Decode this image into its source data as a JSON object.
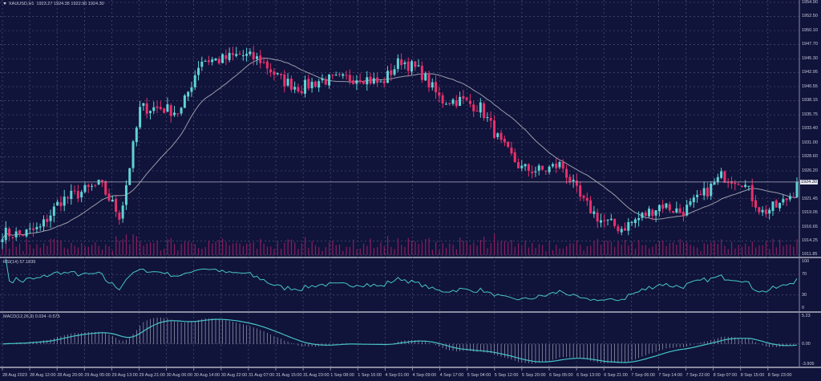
{
  "header": {
    "symbol": "XAUUSD,H1",
    "open": "1923.27",
    "high": "1924.35",
    "low": "1922.90",
    "close": "1924.30"
  },
  "rsi": {
    "label": "RSI(14) 57.1839",
    "levels": [
      "100",
      "70",
      "30",
      "0"
    ]
  },
  "macd": {
    "label": "MACD(12,26,9) 0.034 -0.575",
    "levels": [
      "5.23",
      "0.00",
      "-3.905"
    ]
  },
  "price_axis": [
    "1954.90",
    "1952.50",
    "1950.10",
    "1947.70",
    "1945.30",
    "1942.95",
    "1940.55",
    "1938.15",
    "1935.75",
    "1933.40",
    "1931.00",
    "1928.60",
    "1926.20",
    "1921.45",
    "1919.05",
    "1916.65",
    "1914.25",
    "1911.85"
  ],
  "current_price": "1924.30",
  "time_axis": [
    "28 Aug 2023",
    "28 Aug 12:00",
    "28 Aug 20:00",
    "29 Aug 05:00",
    "29 Aug 13:00",
    "29 Aug 21:00",
    "30 Aug 06:00",
    "30 Aug 14:00",
    "30 Aug 22:00",
    "31 Aug 07:00",
    "31 Aug 15:00",
    "31 Aug 23:00",
    "1 Sep 08:00",
    "1 Sep 16:00",
    "4 Sep 01:00",
    "4 Sep 09:00",
    "4 Sep 17:00",
    "5 Sep 04:00",
    "5 Sep 12:00",
    "5 Sep 20:00",
    "6 Sep 05:00",
    "6 Sep 13:00",
    "6 Sep 21:00",
    "7 Sep 06:00",
    "7 Sep 14:00",
    "7 Sep 22:00",
    "8 Sep 07:00",
    "8 Sep 15:00",
    "8 Sep 23:00"
  ],
  "colors": {
    "background": "#10133a",
    "grid": "#5a5e80",
    "bull": "#5fd3d6",
    "bear": "#e8306c",
    "volume": "#8c1e5e",
    "ma": "#9a9ca8",
    "indicator": "#46c4c8"
  },
  "chart_data": {
    "type": "candlestick",
    "price_range": [
      1911.85,
      1954.9
    ],
    "approx_close_path": [
      1915.7,
      1915.3,
      1916.4,
      1921.1,
      1922.5,
      1923.9,
      1918.4,
      1936.9,
      1936.9,
      1936.2,
      1945.1,
      1945.1,
      1946.0,
      1945.1,
      1941.7,
      1940.3,
      1941.7,
      1941.7,
      1942.3,
      1941.0,
      1945.1,
      1943.0,
      1938.2,
      1938.2,
      1936.9,
      1930.7,
      1926.6,
      1926.2,
      1927.3,
      1921.2,
      1917.7,
      1916.4,
      1918.4,
      1920.5,
      1919.1,
      1921.8,
      1925.3,
      1924.6,
      1919.1,
      1920.5,
      1924.3
    ],
    "rsi_range": [
      0,
      100
    ],
    "macd_range": [
      -3.905,
      5.23
    ]
  }
}
